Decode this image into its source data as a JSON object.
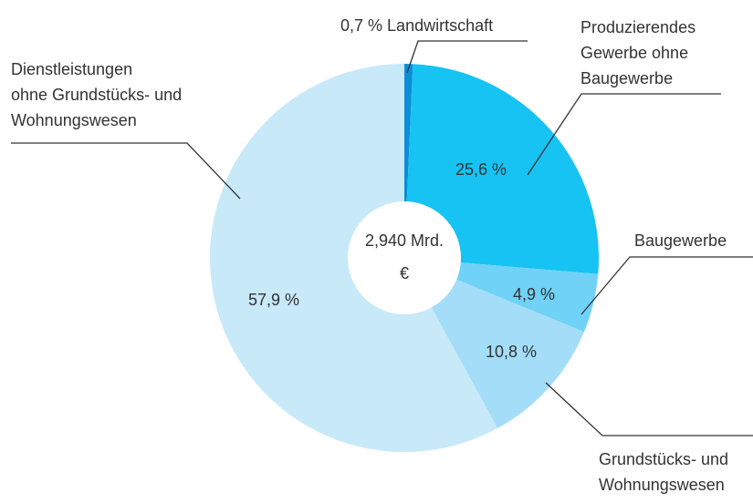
{
  "chart_data": {
    "type": "pie",
    "donut": true,
    "center_label": "2,940 Mrd.\n€",
    "categories": [
      "Landwirtschaft",
      "Produzierendes\nGewerbe ohne\nBaugewerbe",
      "Baugewerbe",
      "Grundstücks- und\nWohnungswesen",
      "Dienstleistungen\nohne Grundstücks- und\nWohnungswesen"
    ],
    "values": [
      0.7,
      25.6,
      4.9,
      10.8,
      57.9
    ],
    "value_labels": [
      "0,7 %",
      "25,6 %",
      "4,9 %",
      "10,8 %",
      "57,9 %"
    ],
    "colors": [
      "#0a8fd6",
      "#16c3f2",
      "#6fd2f6",
      "#a3ddf7",
      "#c8e9f8"
    ]
  }
}
